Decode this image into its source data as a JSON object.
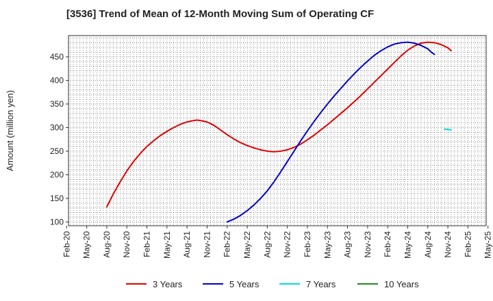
{
  "chart_data": {
    "type": "line",
    "title": "[3536]  Trend of Mean of 12-Month Moving Sum of Operating CF",
    "xlabel": "",
    "ylabel": "Amount (million yen)",
    "ylim": [
      92,
      495
    ],
    "yticks": [
      100,
      150,
      200,
      250,
      300,
      350,
      400,
      450
    ],
    "xticks": [
      "Feb-20",
      "May-20",
      "Aug-20",
      "Nov-20",
      "Feb-21",
      "May-21",
      "Aug-21",
      "Nov-21",
      "Feb-22",
      "May-22",
      "Aug-22",
      "Nov-22",
      "Feb-23",
      "May-23",
      "Aug-23",
      "Nov-23",
      "Feb-24",
      "May-24",
      "Aug-24",
      "Nov-24",
      "Feb-25",
      "May-25"
    ],
    "grid": true,
    "legend_position": "bottom",
    "series": [
      {
        "name": "3 Years",
        "color": "#dd0000",
        "points": [
          [
            12,
            132
          ],
          [
            14,
            160
          ],
          [
            16,
            185
          ],
          [
            18,
            208
          ],
          [
            20,
            228
          ],
          [
            22,
            245
          ],
          [
            24,
            260
          ],
          [
            26,
            272
          ],
          [
            28,
            283
          ],
          [
            30,
            292
          ],
          [
            32,
            300
          ],
          [
            34,
            307
          ],
          [
            36,
            312
          ],
          [
            38,
            315
          ],
          [
            39,
            316
          ],
          [
            40,
            315
          ],
          [
            42,
            312
          ],
          [
            44,
            305
          ],
          [
            46,
            295
          ],
          [
            48,
            285
          ],
          [
            50,
            276
          ],
          [
            52,
            268
          ],
          [
            54,
            262
          ],
          [
            56,
            257
          ],
          [
            58,
            253
          ],
          [
            60,
            250
          ],
          [
            62,
            249
          ],
          [
            64,
            250
          ],
          [
            66,
            253
          ],
          [
            68,
            258
          ],
          [
            70,
            265
          ],
          [
            72,
            274
          ],
          [
            74,
            284
          ],
          [
            76,
            295
          ],
          [
            78,
            306
          ],
          [
            80,
            318
          ],
          [
            82,
            330
          ],
          [
            84,
            342
          ],
          [
            86,
            355
          ],
          [
            88,
            368
          ],
          [
            90,
            382
          ],
          [
            92,
            396
          ],
          [
            94,
            410
          ],
          [
            96,
            424
          ],
          [
            98,
            438
          ],
          [
            100,
            452
          ],
          [
            102,
            464
          ],
          [
            104,
            473
          ],
          [
            106,
            479
          ],
          [
            108,
            481
          ],
          [
            110,
            480
          ],
          [
            112,
            476
          ],
          [
            114,
            469
          ],
          [
            115,
            463
          ]
        ]
      },
      {
        "name": "5 Years",
        "color": "#0000cc",
        "points": [
          [
            48,
            100
          ],
          [
            50,
            106
          ],
          [
            52,
            114
          ],
          [
            54,
            124
          ],
          [
            56,
            136
          ],
          [
            58,
            150
          ],
          [
            60,
            166
          ],
          [
            62,
            185
          ],
          [
            64,
            206
          ],
          [
            66,
            228
          ],
          [
            68,
            250
          ],
          [
            70,
            272
          ],
          [
            72,
            293
          ],
          [
            74,
            313
          ],
          [
            76,
            332
          ],
          [
            78,
            350
          ],
          [
            80,
            367
          ],
          [
            82,
            383
          ],
          [
            84,
            399
          ],
          [
            86,
            414
          ],
          [
            88,
            428
          ],
          [
            90,
            441
          ],
          [
            92,
            453
          ],
          [
            94,
            463
          ],
          [
            96,
            471
          ],
          [
            98,
            477
          ],
          [
            100,
            480
          ],
          [
            102,
            481
          ],
          [
            104,
            479
          ],
          [
            106,
            474
          ],
          [
            108,
            467
          ],
          [
            109,
            460
          ],
          [
            110,
            455
          ]
        ]
      },
      {
        "name": "7 Years",
        "color": "#00dddd",
        "points": [
          [
            113,
            297
          ],
          [
            114,
            296
          ],
          [
            115,
            295
          ]
        ]
      },
      {
        "name": "10 Years",
        "color": "#228822",
        "points": []
      }
    ]
  }
}
